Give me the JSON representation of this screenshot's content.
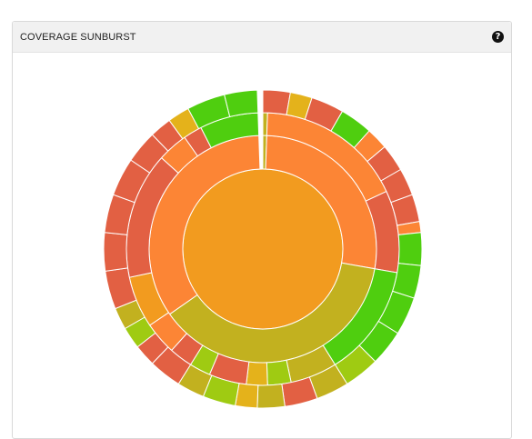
{
  "panel": {
    "title": "COVERAGE SUNBURST",
    "help_icon": "question-circle-icon",
    "help_glyph": "?"
  },
  "colors": {
    "orange": "#f29b1f",
    "dark_orange": "#fc8535",
    "red": "#e26043",
    "olive": "#c2b11f",
    "green": "#4fce0f",
    "yellow_green": "#9fcb12",
    "amber": "#e4b21b"
  },
  "chart_data": {
    "type": "sunburst",
    "rings": [
      {
        "level": 0,
        "segments": [
          {
            "start": 0,
            "end": 360,
            "color": "orange"
          }
        ]
      },
      {
        "level": 1,
        "segments": [
          {
            "start": 0,
            "end": 2,
            "color": "olive"
          },
          {
            "start": 2,
            "end": 100,
            "color": "dark_orange"
          },
          {
            "start": 100,
            "end": 235,
            "color": "olive"
          },
          {
            "start": 235,
            "end": 358,
            "color": "dark_orange"
          }
        ]
      },
      {
        "level": 2,
        "segments": [
          {
            "start": 0,
            "end": 2,
            "color": "olive"
          },
          {
            "start": 2,
            "end": 65,
            "color": "dark_orange"
          },
          {
            "start": 65,
            "end": 100,
            "color": "red"
          },
          {
            "start": 100,
            "end": 148,
            "color": "green"
          },
          {
            "start": 148,
            "end": 168,
            "color": "olive"
          },
          {
            "start": 168,
            "end": 178,
            "color": "yellow_green"
          },
          {
            "start": 178,
            "end": 187,
            "color": "amber"
          },
          {
            "start": 187,
            "end": 203,
            "color": "red"
          },
          {
            "start": 203,
            "end": 212,
            "color": "yellow_green"
          },
          {
            "start": 212,
            "end": 222,
            "color": "red"
          },
          {
            "start": 222,
            "end": 236,
            "color": "dark_orange"
          },
          {
            "start": 236,
            "end": 258,
            "color": "orange"
          },
          {
            "start": 258,
            "end": 312,
            "color": "red"
          },
          {
            "start": 312,
            "end": 325,
            "color": "dark_orange"
          },
          {
            "start": 325,
            "end": 333,
            "color": "red"
          },
          {
            "start": 333,
            "end": 358,
            "color": "green"
          }
        ]
      },
      {
        "level": 3,
        "segments": [
          {
            "start": 0,
            "end": 10,
            "color": "red"
          },
          {
            "start": 10,
            "end": 18,
            "color": "amber"
          },
          {
            "start": 18,
            "end": 30,
            "color": "red"
          },
          {
            "start": 30,
            "end": 42,
            "color": "green"
          },
          {
            "start": 42,
            "end": 50,
            "color": "dark_orange"
          },
          {
            "start": 50,
            "end": 60,
            "color": "red"
          },
          {
            "start": 60,
            "end": 70,
            "color": "red"
          },
          {
            "start": 70,
            "end": 80,
            "color": "red"
          },
          {
            "start": 80,
            "end": 84,
            "color": "dark_orange"
          },
          {
            "start": 84,
            "end": 96,
            "color": "green"
          },
          {
            "start": 96,
            "end": 108,
            "color": "green"
          },
          {
            "start": 108,
            "end": 122,
            "color": "green"
          },
          {
            "start": 122,
            "end": 135,
            "color": "green"
          },
          {
            "start": 135,
            "end": 148,
            "color": "yellow_green"
          },
          {
            "start": 148,
            "end": 160,
            "color": "olive"
          },
          {
            "start": 160,
            "end": 172,
            "color": "red"
          },
          {
            "start": 172,
            "end": 182,
            "color": "olive"
          },
          {
            "start": 182,
            "end": 190,
            "color": "amber"
          },
          {
            "start": 190,
            "end": 202,
            "color": "yellow_green"
          },
          {
            "start": 202,
            "end": 212,
            "color": "olive"
          },
          {
            "start": 212,
            "end": 224,
            "color": "red"
          },
          {
            "start": 224,
            "end": 232,
            "color": "red"
          },
          {
            "start": 232,
            "end": 240,
            "color": "yellow_green"
          },
          {
            "start": 240,
            "end": 248,
            "color": "olive"
          },
          {
            "start": 248,
            "end": 262,
            "color": "red"
          },
          {
            "start": 262,
            "end": 276,
            "color": "red"
          },
          {
            "start": 276,
            "end": 290,
            "color": "red"
          },
          {
            "start": 290,
            "end": 304,
            "color": "red"
          },
          {
            "start": 304,
            "end": 316,
            "color": "red"
          },
          {
            "start": 316,
            "end": 324,
            "color": "red"
          },
          {
            "start": 324,
            "end": 332,
            "color": "amber"
          },
          {
            "start": 332,
            "end": 346,
            "color": "green"
          },
          {
            "start": 346,
            "end": 358,
            "color": "green"
          }
        ]
      }
    ]
  }
}
